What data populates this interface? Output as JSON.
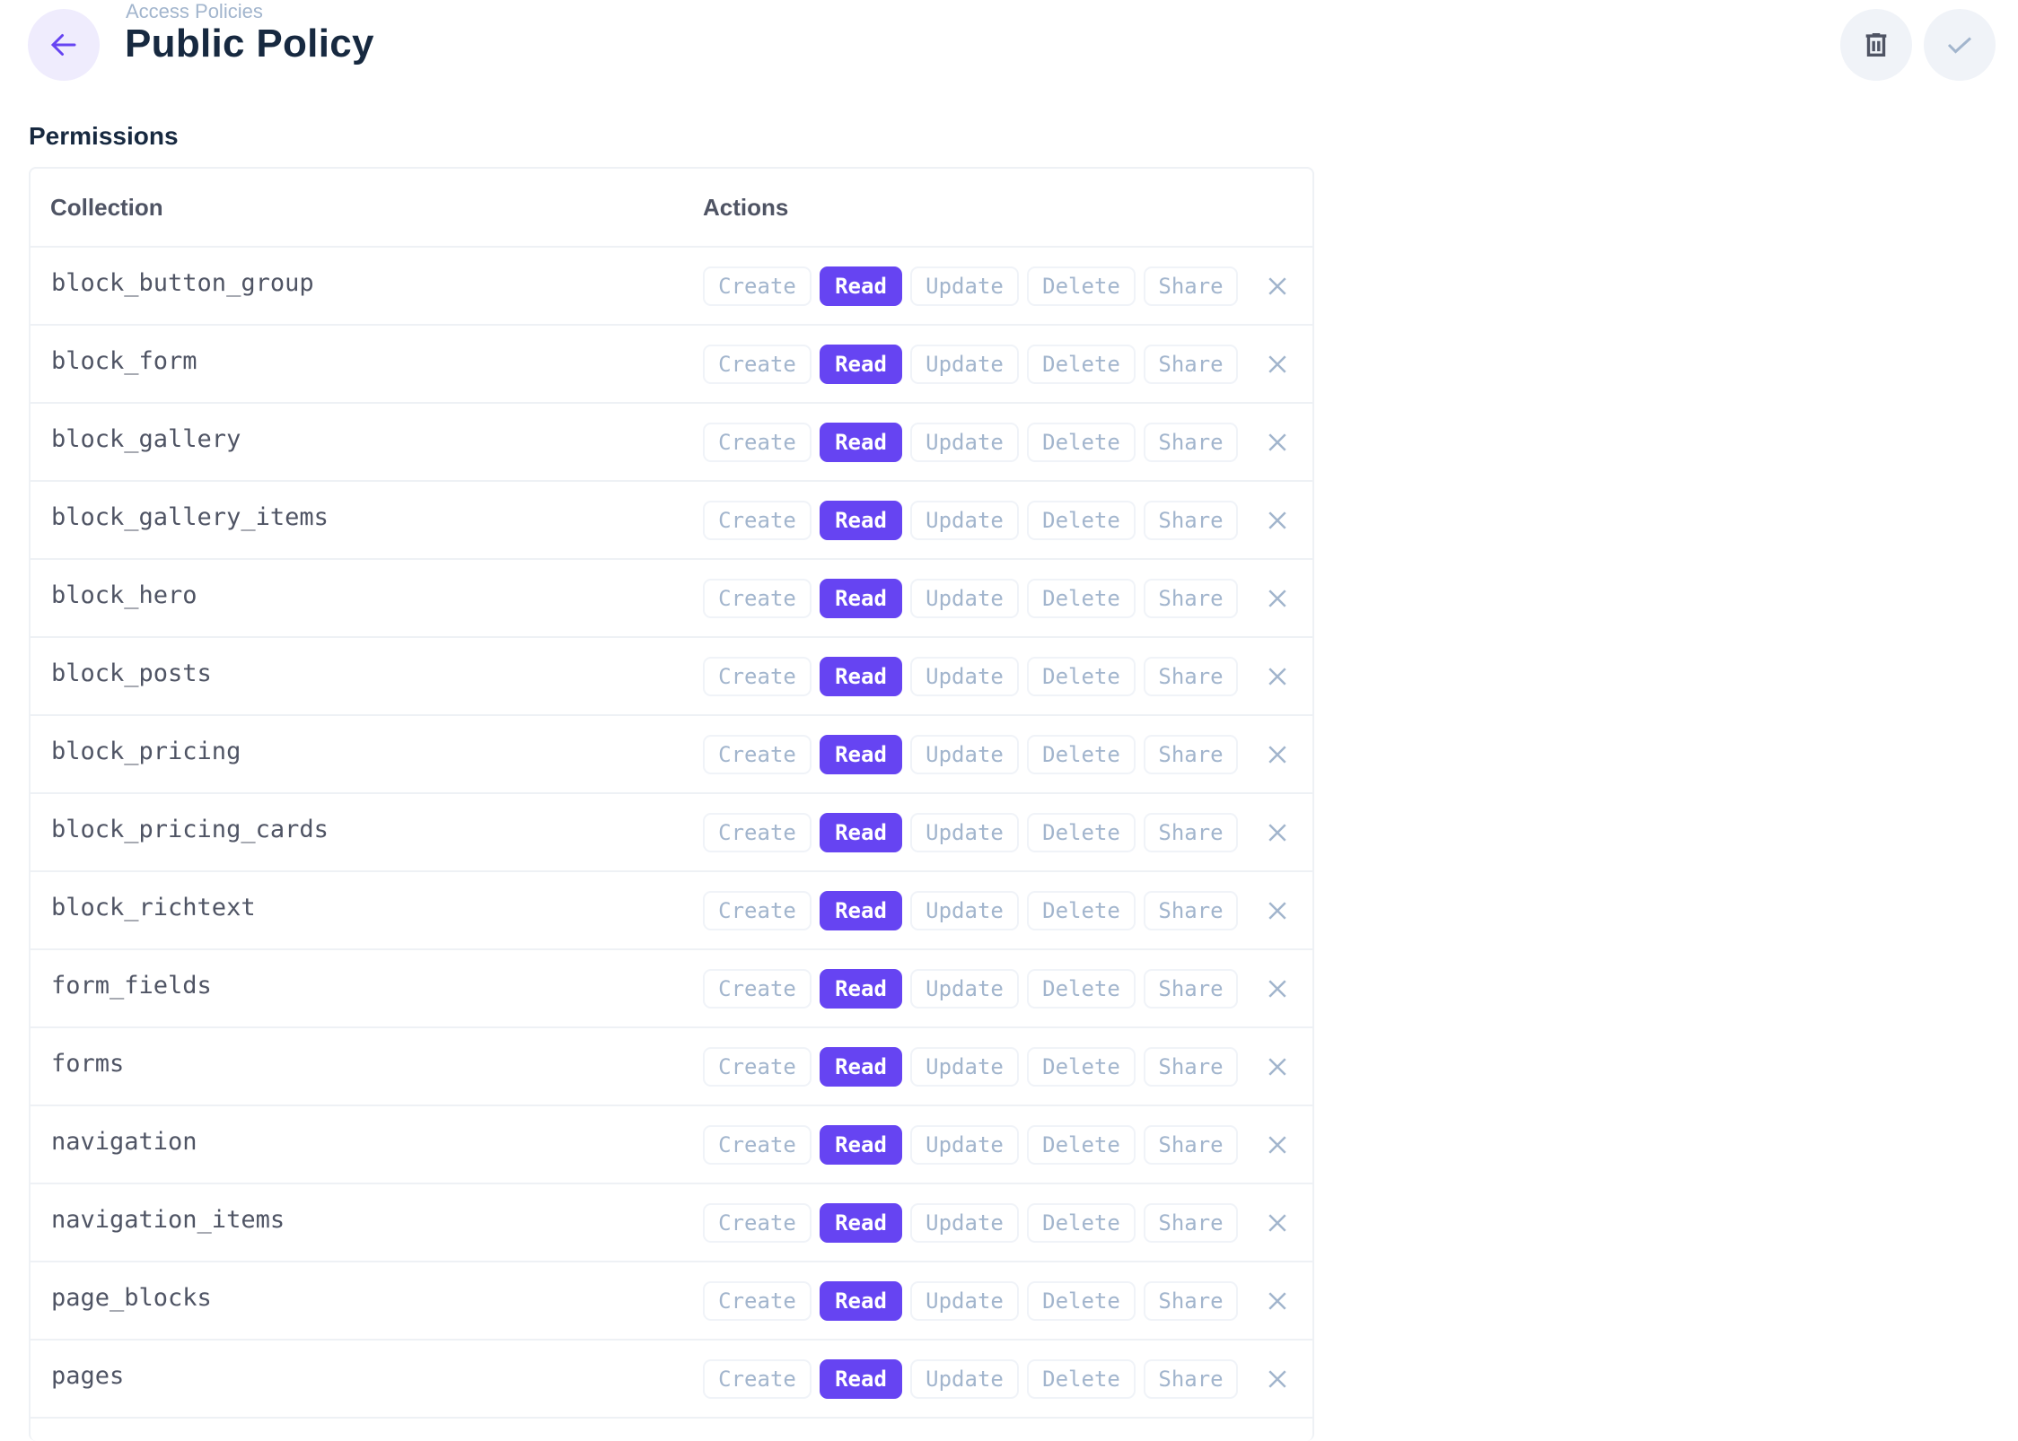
{
  "header": {
    "breadcrumb": "Access Policies",
    "title": "Public Policy"
  },
  "section_title": "Permissions",
  "table": {
    "columns": [
      "Collection",
      "Actions"
    ],
    "action_labels": [
      "Create",
      "Read",
      "Update",
      "Delete",
      "Share"
    ],
    "rows": [
      {
        "collection": "block_button_group",
        "enabled": [
          "Read"
        ]
      },
      {
        "collection": "block_form",
        "enabled": [
          "Read"
        ]
      },
      {
        "collection": "block_gallery",
        "enabled": [
          "Read"
        ]
      },
      {
        "collection": "block_gallery_items",
        "enabled": [
          "Read"
        ]
      },
      {
        "collection": "block_hero",
        "enabled": [
          "Read"
        ]
      },
      {
        "collection": "block_posts",
        "enabled": [
          "Read"
        ]
      },
      {
        "collection": "block_pricing",
        "enabled": [
          "Read"
        ]
      },
      {
        "collection": "block_pricing_cards",
        "enabled": [
          "Read"
        ]
      },
      {
        "collection": "block_richtext",
        "enabled": [
          "Read"
        ]
      },
      {
        "collection": "form_fields",
        "enabled": [
          "Read"
        ]
      },
      {
        "collection": "forms",
        "enabled": [
          "Read"
        ]
      },
      {
        "collection": "navigation",
        "enabled": [
          "Read"
        ]
      },
      {
        "collection": "navigation_items",
        "enabled": [
          "Read"
        ]
      },
      {
        "collection": "page_blocks",
        "enabled": [
          "Read"
        ]
      },
      {
        "collection": "pages",
        "enabled": [
          "Read"
        ]
      }
    ]
  },
  "colors": {
    "accent": "#6644f2",
    "muted": "#a2b5cd",
    "text": "#172940"
  },
  "icons": {
    "back": "arrow-left-icon",
    "delete": "trash-icon",
    "save": "check-icon",
    "remove": "close-icon"
  }
}
